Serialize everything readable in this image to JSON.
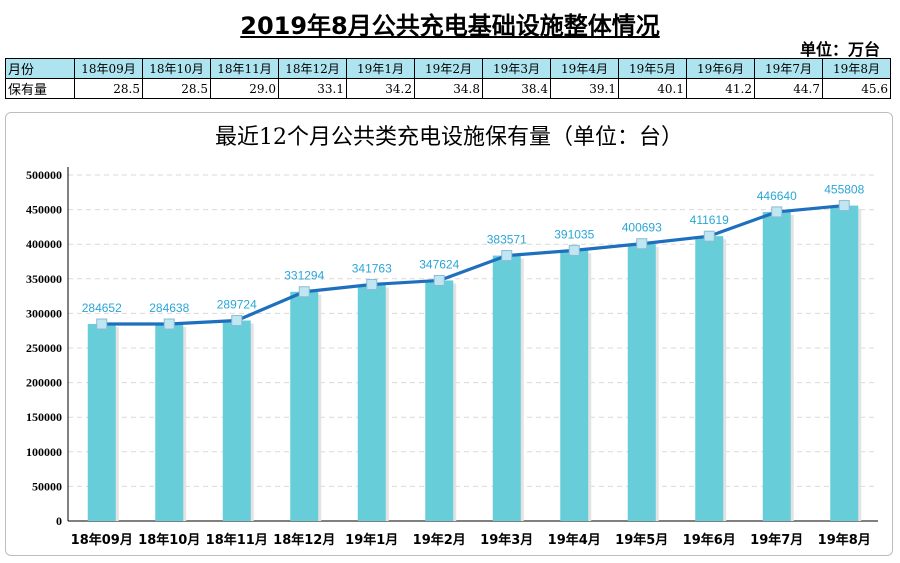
{
  "header": {
    "title": "2019年8月公共充电基础设施整体情况",
    "unit": "单位：万台"
  },
  "summary_table": {
    "row1_label": "月份",
    "row2_label": "保有量",
    "months": [
      "18年09月",
      "18年10月",
      "18年11月",
      "18年12月",
      "19年1月",
      "19年2月",
      "19年3月",
      "19年4月",
      "19年5月",
      "19年6月",
      "19年7月",
      "19年8月"
    ],
    "values": [
      "28.5",
      "28.5",
      "29.0",
      "33.1",
      "34.2",
      "34.8",
      "38.4",
      "39.1",
      "40.1",
      "41.2",
      "44.7",
      "45.6"
    ]
  },
  "colors": {
    "bar": "#66cdd9",
    "line": "#1f6fbf",
    "marker": "#bfe7f2",
    "data_label": "#2aa6d6",
    "table_header_bg": "#aee4ef"
  },
  "chart_data": {
    "type": "bar",
    "title": "最近12个月公共类充电设施保有量（单位：台）",
    "xlabel": "",
    "ylabel": "",
    "categories": [
      "18年09月",
      "18年10月",
      "18年11月",
      "18年12月",
      "19年1月",
      "19年2月",
      "19年3月",
      "19年4月",
      "19年5月",
      "19年6月",
      "19年7月",
      "19年8月"
    ],
    "series": [
      {
        "type": "bar",
        "values": [
          284652,
          284638,
          289724,
          331294,
          341763,
          347624,
          383571,
          391035,
          400693,
          411619,
          446640,
          455808
        ]
      },
      {
        "type": "line",
        "values": [
          284652,
          284638,
          289724,
          331294,
          341763,
          347624,
          383571,
          391035,
          400693,
          411619,
          446640,
          455808
        ]
      }
    ],
    "data_labels": [
      "284652",
      "284638",
      "289724",
      "331294",
      "341763",
      "347624",
      "383571",
      "391035",
      "400693",
      "411619",
      "446640",
      "455808"
    ],
    "yticks": [
      "0",
      "50000",
      "100000",
      "150000",
      "200000",
      "250000",
      "300000",
      "350000",
      "400000",
      "450000",
      "500000"
    ],
    "ylim": [
      0,
      500000
    ],
    "grid": true,
    "legend": "none"
  }
}
